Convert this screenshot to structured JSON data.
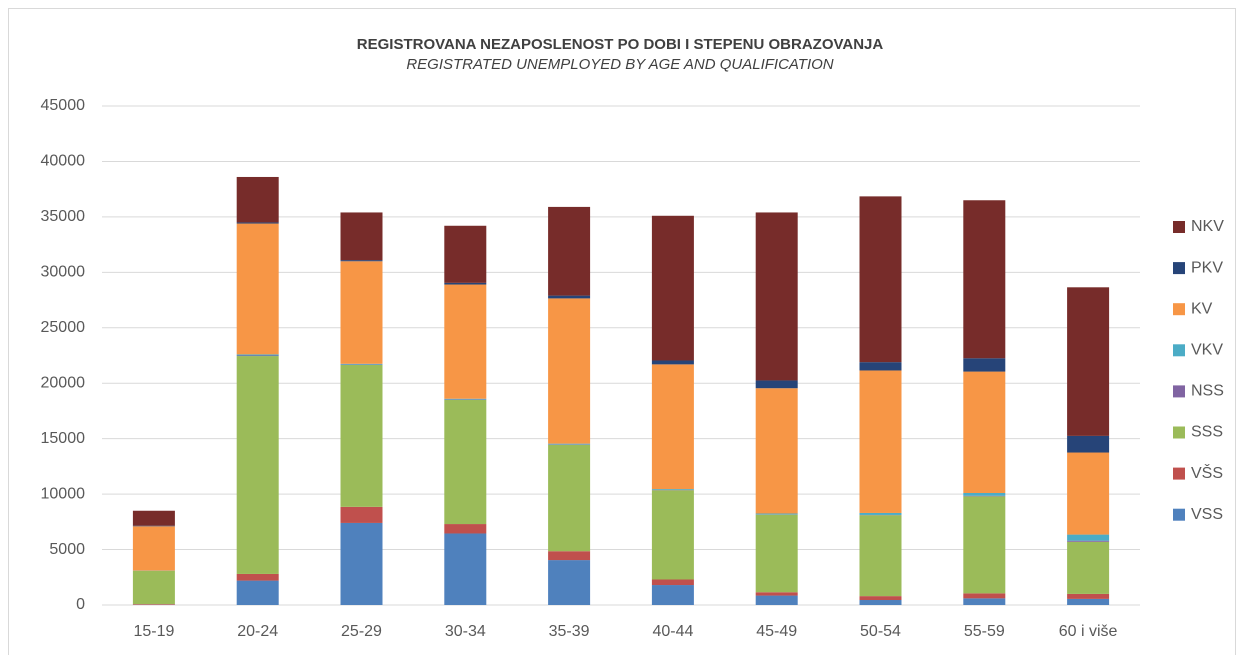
{
  "chart_data": {
    "type": "stacked_bar",
    "title": "REGISTROVANA NEZAPOSLENOST PO DOBI I STEPENU OBRAZOVANJA",
    "subtitle": "REGISTRATED UNEMPLOYED BY AGE AND QUALIFICATION",
    "categories": [
      "15-19",
      "20-24",
      "25-29",
      "30-34",
      "35-39",
      "40-44",
      "45-49",
      "50-54",
      "55-59",
      "60 i više"
    ],
    "series": [
      {
        "name": "VSS",
        "color": "#4f81bd",
        "values": [
          20,
          2200,
          7400,
          6450,
          4050,
          1800,
          850,
          450,
          600,
          550
        ]
      },
      {
        "name": "VŠS",
        "color": "#c0504d",
        "values": [
          60,
          600,
          1450,
          850,
          800,
          500,
          300,
          350,
          450,
          450
        ]
      },
      {
        "name": "SSS",
        "color": "#9bbb59",
        "values": [
          3000,
          19650,
          12800,
          11200,
          9600,
          8050,
          7000,
          7300,
          8750,
          4700
        ]
      },
      {
        "name": "NSS",
        "color": "#8064a2",
        "values": [
          0,
          50,
          30,
          30,
          30,
          20,
          20,
          20,
          50,
          100
        ]
      },
      {
        "name": "VKV",
        "color": "#4bacc6",
        "values": [
          20,
          100,
          70,
          70,
          70,
          80,
          80,
          180,
          250,
          550
        ]
      },
      {
        "name": "KV",
        "color": "#f79646",
        "values": [
          4000,
          11800,
          9250,
          10300,
          13100,
          11250,
          11300,
          12850,
          10950,
          7400
        ]
      },
      {
        "name": "PKV",
        "color": "#264478",
        "values": [
          50,
          100,
          100,
          150,
          250,
          350,
          700,
          750,
          1200,
          1500
        ]
      },
      {
        "name": "NKV",
        "color": "#772c2a",
        "values": [
          1350,
          4100,
          4300,
          5150,
          8000,
          13050,
          15150,
          14950,
          14250,
          13400
        ]
      }
    ],
    "ylim": [
      0,
      45000
    ],
    "yticks": [
      0,
      5000,
      10000,
      15000,
      20000,
      25000,
      30000,
      35000,
      40000,
      45000
    ],
    "grid": true,
    "legend": "right"
  }
}
